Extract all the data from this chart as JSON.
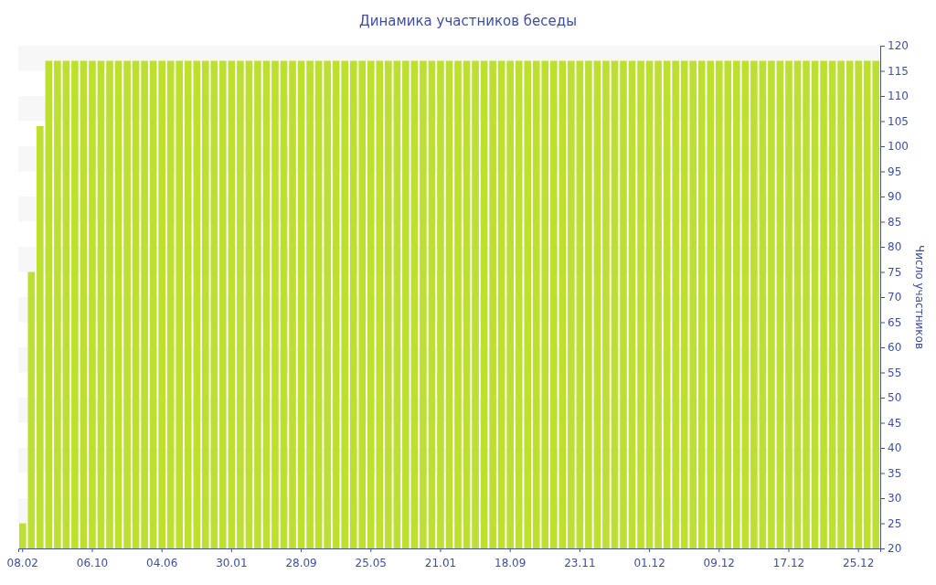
{
  "chart_data": {
    "type": "bar",
    "title": "Динамика участников беседы",
    "ylabel": "Число участников",
    "categories": [
      "08.02",
      null,
      null,
      null,
      null,
      null,
      null,
      null,
      "06.10",
      null,
      null,
      null,
      null,
      null,
      null,
      null,
      "04.06",
      null,
      null,
      null,
      null,
      null,
      null,
      null,
      "30.01",
      null,
      null,
      null,
      null,
      null,
      null,
      null,
      "28.09",
      null,
      null,
      null,
      null,
      null,
      null,
      null,
      "25.05",
      null,
      null,
      null,
      null,
      null,
      null,
      null,
      "21.01",
      null,
      null,
      null,
      null,
      null,
      null,
      null,
      "18.09",
      null,
      null,
      null,
      null,
      null,
      null,
      null,
      "23.11",
      null,
      null,
      null,
      null,
      null,
      null,
      null,
      "01.12",
      null,
      null,
      null,
      null,
      null,
      null,
      null,
      "09.12",
      null,
      null,
      null,
      null,
      null,
      null,
      null,
      "17.12",
      null,
      null,
      null,
      null,
      null,
      null,
      null,
      "25.12",
      null,
      null
    ],
    "values": [
      25,
      75,
      104,
      117,
      117,
      117,
      117,
      117,
      117,
      117,
      117,
      117,
      117,
      117,
      117,
      117,
      117,
      117,
      117,
      117,
      117,
      117,
      117,
      117,
      117,
      117,
      117,
      117,
      117,
      117,
      117,
      117,
      117,
      117,
      117,
      117,
      117,
      117,
      117,
      117,
      117,
      117,
      117,
      117,
      117,
      117,
      117,
      117,
      117,
      117,
      117,
      117,
      117,
      117,
      117,
      117,
      117,
      117,
      117,
      117,
      117,
      117,
      117,
      117,
      117,
      117,
      117,
      117,
      117,
      117,
      117,
      117,
      117,
      117,
      117,
      117,
      117,
      117,
      117,
      117,
      117,
      117,
      117,
      117,
      117,
      117,
      117,
      117,
      117,
      117,
      117,
      117,
      117,
      117,
      117,
      117,
      117,
      117,
      117
    ],
    "color": "#bde02e",
    "ylim": [
      20,
      120
    ],
    "yticks": [
      20,
      25,
      30,
      35,
      40,
      45,
      50,
      55,
      60,
      65,
      70,
      75,
      80,
      85,
      90,
      95,
      100,
      105,
      110,
      115,
      120
    ]
  }
}
